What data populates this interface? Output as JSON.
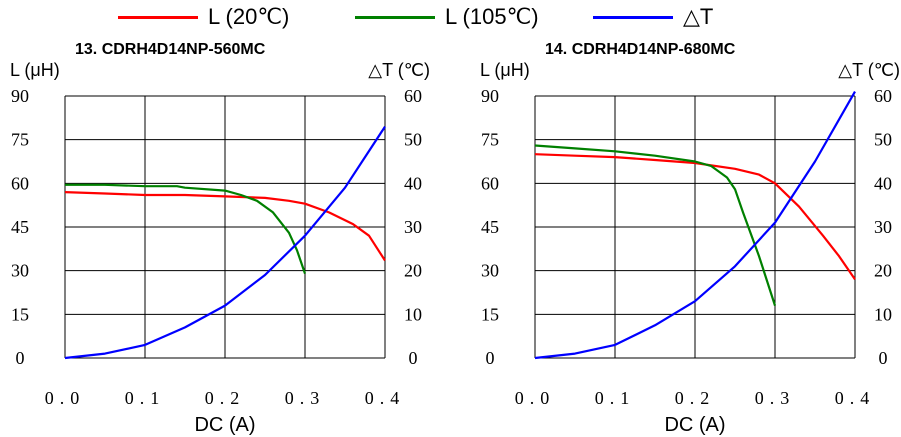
{
  "legend": [
    {
      "label": "L (20℃)",
      "color": "#ff0000"
    },
    {
      "label": "L (105℃)",
      "color": "#008000"
    },
    {
      "label": "△T",
      "color": "#0000ff"
    }
  ],
  "chart_data": [
    {
      "type": "line",
      "title": "13. CDRH4D14NP-560MC",
      "xlabel": "DC (A)",
      "ylabel": "L (μH)",
      "y2label": "△T (℃)",
      "xlim": [
        0,
        0.4
      ],
      "ylim": [
        0,
        90
      ],
      "y2lim": [
        0,
        60
      ],
      "xticks": [
        "0.0",
        "0.1",
        "0.2",
        "0.3",
        "0.4"
      ],
      "yticks": [
        "0",
        "15",
        "30",
        "45",
        "60",
        "75",
        "90"
      ],
      "y2ticks": [
        "0",
        "10",
        "20",
        "30",
        "40",
        "50",
        "60"
      ],
      "grid": true,
      "series": [
        {
          "name": "L (20℃)",
          "axis": "left",
          "color": "#ff0000",
          "x": [
            0,
            0.05,
            0.1,
            0.15,
            0.2,
            0.25,
            0.28,
            0.3,
            0.33,
            0.36,
            0.38,
            0.4
          ],
          "y": [
            57,
            56.5,
            56,
            56,
            55.5,
            55,
            54,
            53,
            50,
            46,
            42,
            33.5
          ]
        },
        {
          "name": "L (105℃)",
          "axis": "left",
          "color": "#008000",
          "x": [
            0,
            0.05,
            0.1,
            0.14,
            0.15,
            0.2,
            0.22,
            0.24,
            0.26,
            0.28,
            0.29,
            0.3
          ],
          "y": [
            59.5,
            59.5,
            59,
            59,
            58.5,
            57.5,
            56,
            54,
            50,
            43,
            37,
            29
          ]
        },
        {
          "name": "△T",
          "axis": "right",
          "color": "#0000ff",
          "x": [
            0,
            0.05,
            0.1,
            0.15,
            0.2,
            0.25,
            0.3,
            0.35,
            0.4
          ],
          "y": [
            0,
            1,
            3,
            7,
            12,
            19,
            28,
            39,
            53
          ]
        }
      ]
    },
    {
      "type": "line",
      "title": "14. CDRH4D14NP-680MC",
      "xlabel": "DC (A)",
      "ylabel": "L (μH)",
      "y2label": "△T (℃)",
      "xlim": [
        0,
        0.4
      ],
      "ylim": [
        0,
        90
      ],
      "y2lim": [
        0,
        60
      ],
      "xticks": [
        "0.0",
        "0.1",
        "0.2",
        "0.3",
        "0.4"
      ],
      "yticks": [
        "0",
        "15",
        "30",
        "45",
        "60",
        "75",
        "90"
      ],
      "y2ticks": [
        "0",
        "10",
        "20",
        "30",
        "40",
        "50",
        "60"
      ],
      "grid": true,
      "series": [
        {
          "name": "L (20℃)",
          "axis": "left",
          "color": "#ff0000",
          "x": [
            0,
            0.05,
            0.1,
            0.15,
            0.2,
            0.25,
            0.28,
            0.3,
            0.33,
            0.36,
            0.38,
            0.4
          ],
          "y": [
            70,
            69.5,
            69,
            68,
            67,
            65,
            63,
            60,
            52,
            42,
            35,
            27
          ]
        },
        {
          "name": "L (105℃)",
          "axis": "left",
          "color": "#008000",
          "x": [
            0,
            0.05,
            0.1,
            0.15,
            0.2,
            0.22,
            0.24,
            0.25,
            0.26,
            0.28,
            0.3
          ],
          "y": [
            73,
            72,
            71,
            69.5,
            67.5,
            66,
            62,
            58,
            50,
            35,
            18
          ]
        },
        {
          "name": "△T",
          "axis": "right",
          "color": "#0000ff",
          "x": [
            0,
            0.05,
            0.1,
            0.15,
            0.2,
            0.25,
            0.3,
            0.35,
            0.4
          ],
          "y": [
            0,
            1,
            3,
            7.5,
            13,
            21,
            31,
            45,
            61
          ]
        }
      ]
    }
  ]
}
